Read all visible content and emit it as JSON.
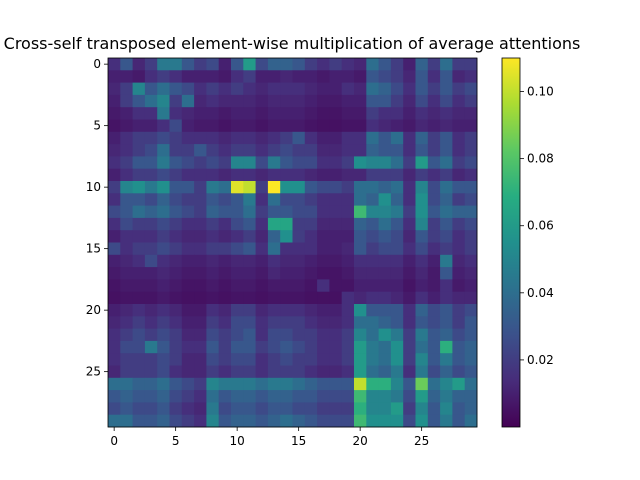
{
  "chart_data": {
    "type": "heatmap",
    "title": "Cross-self transposed element-wise multiplication of average attentions",
    "xlabel": "",
    "ylabel": "",
    "rows": 30,
    "cols": 30,
    "x_ticks": [
      0,
      5,
      10,
      15,
      20,
      25
    ],
    "y_ticks": [
      0,
      5,
      10,
      15,
      20,
      25
    ],
    "colormap": "viridis",
    "vmin": 0.0,
    "vmax": 0.11,
    "colorbar_ticks": [
      0.02,
      0.04,
      0.06,
      0.08,
      0.1
    ],
    "colorbar_tick_labels": [
      "0.02",
      "0.04",
      "0.06",
      "0.08",
      "0.10"
    ],
    "values": [
      [
        0.015,
        0.03,
        0.012,
        0.02,
        0.045,
        0.045,
        0.03,
        0.02,
        0.025,
        0.01,
        0.03,
        0.06,
        0.025,
        0.035,
        0.035,
        0.03,
        0.02,
        0.015,
        0.02,
        0.015,
        0.012,
        0.04,
        0.03,
        0.02,
        0.01,
        0.035,
        0.02,
        0.04,
        0.02,
        0.02
      ],
      [
        0.01,
        0.01,
        0.008,
        0.015,
        0.02,
        0.015,
        0.01,
        0.01,
        0.01,
        0.008,
        0.015,
        0.02,
        0.01,
        0.01,
        0.012,
        0.01,
        0.01,
        0.008,
        0.01,
        0.01,
        0.008,
        0.03,
        0.025,
        0.02,
        0.012,
        0.03,
        0.015,
        0.03,
        0.012,
        0.015
      ],
      [
        0.012,
        0.02,
        0.05,
        0.03,
        0.04,
        0.03,
        0.025,
        0.015,
        0.02,
        0.015,
        0.02,
        0.015,
        0.012,
        0.015,
        0.015,
        0.015,
        0.012,
        0.01,
        0.01,
        0.015,
        0.012,
        0.04,
        0.035,
        0.025,
        0.015,
        0.03,
        0.02,
        0.03,
        0.02,
        0.025
      ],
      [
        0.01,
        0.02,
        0.03,
        0.04,
        0.05,
        0.02,
        0.04,
        0.012,
        0.015,
        0.012,
        0.012,
        0.012,
        0.01,
        0.012,
        0.012,
        0.012,
        0.01,
        0.008,
        0.008,
        0.01,
        0.01,
        0.03,
        0.03,
        0.02,
        0.012,
        0.025,
        0.015,
        0.025,
        0.015,
        0.02
      ],
      [
        0.008,
        0.01,
        0.015,
        0.015,
        0.045,
        0.015,
        0.012,
        0.01,
        0.01,
        0.008,
        0.01,
        0.01,
        0.008,
        0.01,
        0.01,
        0.01,
        0.008,
        0.006,
        0.006,
        0.008,
        0.008,
        0.02,
        0.015,
        0.015,
        0.01,
        0.015,
        0.012,
        0.015,
        0.012,
        0.012
      ],
      [
        0.006,
        0.008,
        0.01,
        0.01,
        0.015,
        0.025,
        0.01,
        0.008,
        0.008,
        0.006,
        0.008,
        0.008,
        0.006,
        0.008,
        0.008,
        0.008,
        0.006,
        0.005,
        0.005,
        0.006,
        0.006,
        0.015,
        0.012,
        0.01,
        0.008,
        0.012,
        0.01,
        0.012,
        0.01,
        0.01
      ],
      [
        0.01,
        0.015,
        0.02,
        0.02,
        0.025,
        0.02,
        0.015,
        0.015,
        0.015,
        0.012,
        0.015,
        0.015,
        0.012,
        0.015,
        0.02,
        0.03,
        0.015,
        0.01,
        0.01,
        0.015,
        0.015,
        0.04,
        0.03,
        0.04,
        0.015,
        0.035,
        0.02,
        0.03,
        0.015,
        0.02
      ],
      [
        0.012,
        0.015,
        0.02,
        0.025,
        0.04,
        0.02,
        0.02,
        0.03,
        0.02,
        0.015,
        0.02,
        0.02,
        0.015,
        0.02,
        0.025,
        0.02,
        0.02,
        0.012,
        0.012,
        0.015,
        0.015,
        0.035,
        0.03,
        0.03,
        0.015,
        0.03,
        0.02,
        0.03,
        0.015,
        0.02
      ],
      [
        0.015,
        0.02,
        0.03,
        0.03,
        0.045,
        0.03,
        0.025,
        0.02,
        0.025,
        0.02,
        0.05,
        0.05,
        0.025,
        0.045,
        0.03,
        0.025,
        0.025,
        0.015,
        0.015,
        0.02,
        0.055,
        0.05,
        0.05,
        0.04,
        0.02,
        0.06,
        0.03,
        0.04,
        0.02,
        0.025
      ],
      [
        0.01,
        0.015,
        0.02,
        0.02,
        0.025,
        0.02,
        0.015,
        0.015,
        0.015,
        0.012,
        0.015,
        0.015,
        0.012,
        0.015,
        0.015,
        0.015,
        0.012,
        0.01,
        0.01,
        0.012,
        0.012,
        0.02,
        0.02,
        0.02,
        0.012,
        0.02,
        0.015,
        0.02,
        0.012,
        0.015
      ],
      [
        0.02,
        0.05,
        0.055,
        0.045,
        0.055,
        0.03,
        0.03,
        0.02,
        0.045,
        0.04,
        0.105,
        0.1,
        0.02,
        0.11,
        0.055,
        0.055,
        0.03,
        0.025,
        0.025,
        0.02,
        0.04,
        0.04,
        0.035,
        0.04,
        0.015,
        0.05,
        0.025,
        0.04,
        0.03,
        0.03
      ],
      [
        0.015,
        0.03,
        0.03,
        0.025,
        0.035,
        0.025,
        0.02,
        0.02,
        0.03,
        0.025,
        0.03,
        0.045,
        0.015,
        0.04,
        0.025,
        0.025,
        0.02,
        0.015,
        0.015,
        0.015,
        0.04,
        0.035,
        0.055,
        0.035,
        0.015,
        0.055,
        0.025,
        0.035,
        0.02,
        0.025
      ],
      [
        0.025,
        0.03,
        0.04,
        0.035,
        0.04,
        0.03,
        0.025,
        0.02,
        0.035,
        0.03,
        0.03,
        0.04,
        0.02,
        0.03,
        0.03,
        0.025,
        0.025,
        0.015,
        0.015,
        0.015,
        0.075,
        0.05,
        0.05,
        0.045,
        0.02,
        0.055,
        0.03,
        0.04,
        0.035,
        0.035
      ],
      [
        0.015,
        0.025,
        0.02,
        0.02,
        0.025,
        0.02,
        0.015,
        0.015,
        0.02,
        0.015,
        0.025,
        0.03,
        0.015,
        0.065,
        0.065,
        0.02,
        0.02,
        0.012,
        0.012,
        0.012,
        0.035,
        0.03,
        0.04,
        0.03,
        0.015,
        0.05,
        0.02,
        0.03,
        0.02,
        0.025
      ],
      [
        0.01,
        0.015,
        0.015,
        0.015,
        0.02,
        0.015,
        0.012,
        0.012,
        0.015,
        0.012,
        0.015,
        0.02,
        0.012,
        0.035,
        0.055,
        0.02,
        0.015,
        0.01,
        0.01,
        0.01,
        0.03,
        0.025,
        0.03,
        0.025,
        0.012,
        0.03,
        0.02,
        0.025,
        0.015,
        0.02
      ],
      [
        0.025,
        0.015,
        0.02,
        0.02,
        0.025,
        0.02,
        0.015,
        0.015,
        0.02,
        0.02,
        0.025,
        0.03,
        0.015,
        0.04,
        0.015,
        0.015,
        0.015,
        0.01,
        0.01,
        0.012,
        0.03,
        0.02,
        0.025,
        0.025,
        0.015,
        0.025,
        0.015,
        0.02,
        0.015,
        0.02
      ],
      [
        0.01,
        0.012,
        0.015,
        0.025,
        0.015,
        0.012,
        0.01,
        0.01,
        0.012,
        0.01,
        0.012,
        0.012,
        0.01,
        0.015,
        0.012,
        0.012,
        0.01,
        0.008,
        0.008,
        0.01,
        0.015,
        0.015,
        0.015,
        0.015,
        0.01,
        0.015,
        0.01,
        0.045,
        0.012,
        0.015
      ],
      [
        0.008,
        0.01,
        0.01,
        0.01,
        0.012,
        0.01,
        0.008,
        0.008,
        0.01,
        0.008,
        0.01,
        0.01,
        0.008,
        0.012,
        0.01,
        0.01,
        0.008,
        0.006,
        0.006,
        0.008,
        0.012,
        0.012,
        0.012,
        0.012,
        0.008,
        0.012,
        0.008,
        0.03,
        0.01,
        0.012
      ],
      [
        0.006,
        0.008,
        0.008,
        0.008,
        0.01,
        0.008,
        0.006,
        0.006,
        0.008,
        0.006,
        0.008,
        0.008,
        0.006,
        0.008,
        0.008,
        0.008,
        0.006,
        0.015,
        0.006,
        0.006,
        0.01,
        0.01,
        0.01,
        0.01,
        0.006,
        0.01,
        0.008,
        0.015,
        0.008,
        0.01
      ],
      [
        0.005,
        0.006,
        0.006,
        0.006,
        0.008,
        0.006,
        0.005,
        0.005,
        0.006,
        0.005,
        0.006,
        0.006,
        0.005,
        0.006,
        0.006,
        0.006,
        0.005,
        0.005,
        0.005,
        0.015,
        0.012,
        0.015,
        0.015,
        0.012,
        0.008,
        0.015,
        0.01,
        0.015,
        0.012,
        0.012
      ],
      [
        0.01,
        0.012,
        0.015,
        0.012,
        0.015,
        0.012,
        0.008,
        0.008,
        0.015,
        0.012,
        0.02,
        0.02,
        0.012,
        0.015,
        0.015,
        0.015,
        0.012,
        0.01,
        0.01,
        0.015,
        0.055,
        0.03,
        0.03,
        0.03,
        0.015,
        0.035,
        0.025,
        0.03,
        0.02,
        0.025
      ],
      [
        0.012,
        0.015,
        0.02,
        0.015,
        0.02,
        0.015,
        0.01,
        0.01,
        0.02,
        0.015,
        0.025,
        0.025,
        0.015,
        0.02,
        0.02,
        0.02,
        0.015,
        0.012,
        0.012,
        0.015,
        0.04,
        0.04,
        0.035,
        0.03,
        0.015,
        0.03,
        0.025,
        0.03,
        0.02,
        0.03
      ],
      [
        0.015,
        0.02,
        0.025,
        0.02,
        0.025,
        0.02,
        0.012,
        0.012,
        0.025,
        0.02,
        0.025,
        0.03,
        0.015,
        0.025,
        0.025,
        0.02,
        0.02,
        0.015,
        0.015,
        0.02,
        0.05,
        0.04,
        0.055,
        0.045,
        0.02,
        0.045,
        0.03,
        0.035,
        0.025,
        0.03
      ],
      [
        0.015,
        0.025,
        0.025,
        0.045,
        0.03,
        0.02,
        0.015,
        0.015,
        0.03,
        0.02,
        0.03,
        0.03,
        0.02,
        0.025,
        0.03,
        0.025,
        0.02,
        0.015,
        0.015,
        0.02,
        0.06,
        0.045,
        0.04,
        0.055,
        0.02,
        0.04,
        0.03,
        0.07,
        0.03,
        0.035
      ],
      [
        0.015,
        0.02,
        0.02,
        0.02,
        0.025,
        0.02,
        0.012,
        0.012,
        0.025,
        0.02,
        0.025,
        0.025,
        0.015,
        0.02,
        0.025,
        0.02,
        0.02,
        0.015,
        0.015,
        0.02,
        0.06,
        0.045,
        0.04,
        0.055,
        0.02,
        0.05,
        0.03,
        0.045,
        0.03,
        0.035
      ],
      [
        0.012,
        0.02,
        0.02,
        0.02,
        0.025,
        0.015,
        0.012,
        0.012,
        0.02,
        0.015,
        0.02,
        0.02,
        0.015,
        0.02,
        0.02,
        0.02,
        0.015,
        0.012,
        0.012,
        0.015,
        0.06,
        0.04,
        0.035,
        0.045,
        0.015,
        0.045,
        0.025,
        0.035,
        0.025,
        0.03
      ],
      [
        0.04,
        0.04,
        0.035,
        0.035,
        0.04,
        0.03,
        0.025,
        0.02,
        0.05,
        0.045,
        0.045,
        0.045,
        0.04,
        0.045,
        0.045,
        0.04,
        0.035,
        0.03,
        0.03,
        0.03,
        0.1,
        0.07,
        0.07,
        0.05,
        0.03,
        0.085,
        0.04,
        0.05,
        0.06,
        0.04
      ],
      [
        0.03,
        0.035,
        0.03,
        0.03,
        0.035,
        0.025,
        0.02,
        0.015,
        0.04,
        0.03,
        0.035,
        0.035,
        0.03,
        0.035,
        0.035,
        0.03,
        0.03,
        0.025,
        0.025,
        0.025,
        0.075,
        0.05,
        0.05,
        0.045,
        0.025,
        0.06,
        0.035,
        0.045,
        0.035,
        0.035
      ],
      [
        0.025,
        0.03,
        0.025,
        0.025,
        0.03,
        0.02,
        0.015,
        0.012,
        0.045,
        0.025,
        0.03,
        0.03,
        0.025,
        0.03,
        0.03,
        0.025,
        0.025,
        0.02,
        0.02,
        0.02,
        0.07,
        0.05,
        0.05,
        0.06,
        0.02,
        0.05,
        0.03,
        0.05,
        0.03,
        0.035
      ],
      [
        0.04,
        0.04,
        0.03,
        0.03,
        0.035,
        0.025,
        0.02,
        0.015,
        0.05,
        0.03,
        0.035,
        0.035,
        0.03,
        0.035,
        0.04,
        0.035,
        0.03,
        0.025,
        0.025,
        0.025,
        0.075,
        0.055,
        0.055,
        0.055,
        0.025,
        0.055,
        0.03,
        0.045,
        0.03,
        0.04
      ]
    ]
  }
}
